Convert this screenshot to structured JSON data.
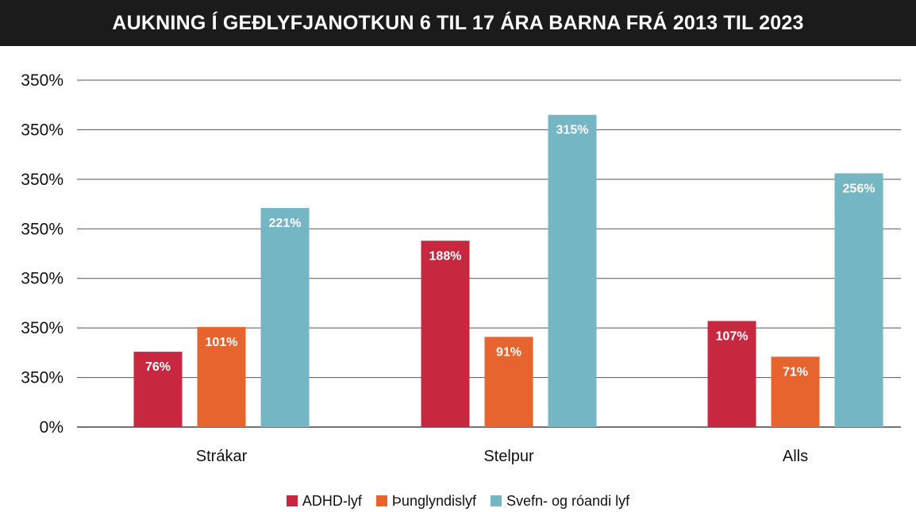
{
  "chart_data": {
    "type": "bar",
    "title": "AUKNING Í GEÐLYFJANOTKUN 6 TIL 17 ÁRA BARNA FRÁ 2013 TIL 2023",
    "categories": [
      "Strákar",
      "Stelpur",
      "Alls"
    ],
    "series": [
      {
        "name": "ADHD-lyf",
        "color": "#c8283f",
        "values": [
          76,
          188,
          107
        ],
        "labels": [
          "76%",
          "188%",
          "107%"
        ]
      },
      {
        "name": "Þunglyndislyf",
        "color": "#e8642f",
        "values": [
          101,
          91,
          71
        ],
        "labels": [
          "101%",
          "91%",
          "71%"
        ]
      },
      {
        "name": "Svefn- og róandi lyf",
        "color": "#74b6c4",
        "values": [
          221,
          315,
          256
        ],
        "labels": [
          "221%",
          "315%",
          "256%"
        ]
      }
    ],
    "y_tick_labels": [
      "0%",
      "350%",
      "350%",
      "350%",
      "350%",
      "350%",
      "350%",
      "350%"
    ],
    "ylim": [
      0,
      350
    ],
    "grid": true,
    "legend_position": "bottom"
  }
}
